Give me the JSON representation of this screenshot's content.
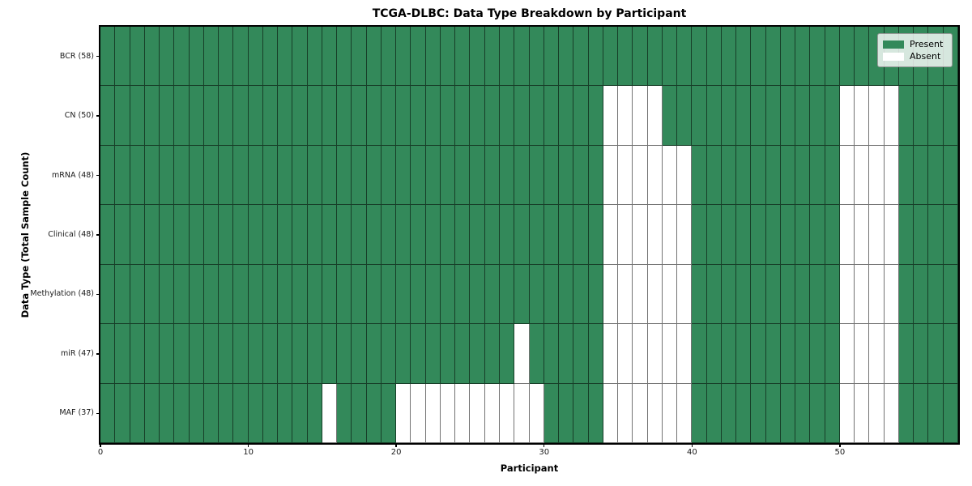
{
  "chart_data": {
    "type": "heatmap",
    "title": "TCGA-DLBC: Data Type Breakdown by Participant",
    "xlabel": "Participant",
    "ylabel": "Data Type (Total Sample Count)",
    "x_ticks": [
      0,
      10,
      20,
      30,
      40,
      50
    ],
    "n_columns": 58,
    "x_range": [
      0,
      58
    ],
    "grid": true,
    "colors": {
      "present": "#33895a",
      "absent": "#ffffff",
      "grid_line": "rgba(0,0,0,0.55)",
      "frame": "#000000"
    },
    "legend": {
      "position": "upper right",
      "entries": [
        {
          "label": "Present",
          "color": "#33895a"
        },
        {
          "label": "Absent",
          "color": "#ffffff"
        }
      ]
    },
    "rows": [
      {
        "label": "BCR (58)",
        "total_samples": 58,
        "absent_columns": []
      },
      {
        "label": "CN (50)",
        "total_samples": 50,
        "absent_columns": [
          34,
          35,
          36,
          37,
          50,
          51,
          52,
          53
        ]
      },
      {
        "label": "mRNA (48)",
        "total_samples": 48,
        "absent_columns": [
          34,
          35,
          36,
          37,
          38,
          39,
          50,
          51,
          52,
          53
        ]
      },
      {
        "label": "Clinical (48)",
        "total_samples": 48,
        "absent_columns": [
          34,
          35,
          36,
          37,
          38,
          39,
          50,
          51,
          52,
          53
        ]
      },
      {
        "label": "Methylation (48)",
        "total_samples": 48,
        "absent_columns": [
          34,
          35,
          36,
          37,
          38,
          39,
          50,
          51,
          52,
          53
        ]
      },
      {
        "label": "miR (47)",
        "total_samples": 47,
        "absent_columns": [
          28,
          34,
          35,
          36,
          37,
          38,
          39,
          50,
          51,
          52,
          53
        ]
      },
      {
        "label": "MAF (37)",
        "total_samples": 37,
        "absent_columns": [
          15,
          20,
          21,
          22,
          23,
          24,
          25,
          26,
          27,
          28,
          29,
          34,
          35,
          36,
          37,
          38,
          39,
          50,
          51,
          52,
          53
        ]
      }
    ]
  }
}
